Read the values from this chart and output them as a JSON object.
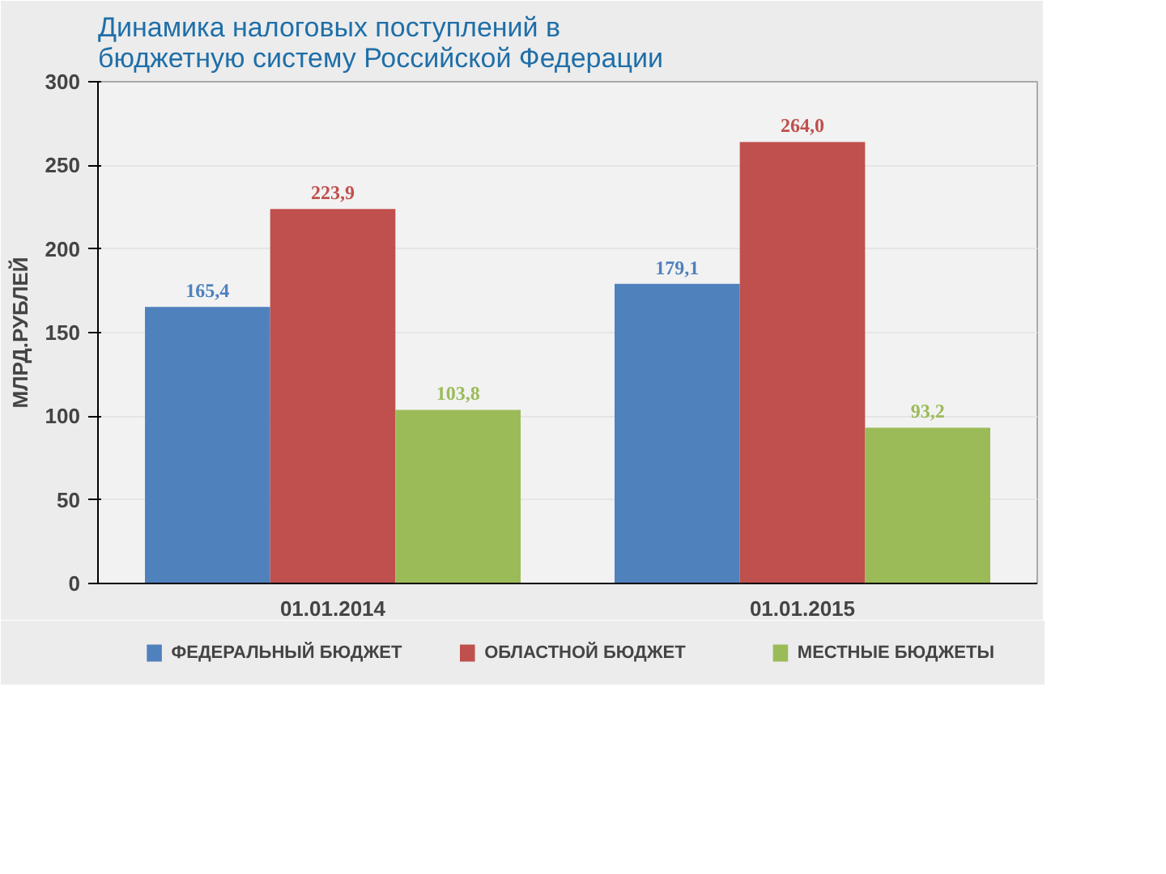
{
  "chart_data": {
    "type": "bar",
    "title": "Динамика налоговых поступлений в\nбюджетную систему Российской Федерации",
    "ylabel": "МЛРД.РУБЛЕЙ",
    "categories": [
      "01.01.2014",
      "01.01.2015"
    ],
    "series": [
      {
        "name": "ФЕДЕРАЛЬНЫЙ БЮДЖЕТ",
        "color": "#4f81bd",
        "values": [
          165.4,
          179.1
        ],
        "value_labels": [
          "165,4",
          "179,1"
        ]
      },
      {
        "name": "ОБЛАСТНОЙ БЮДЖЕТ",
        "color": "#c0504d",
        "values": [
          223.9,
          264.0
        ],
        "value_labels": [
          "223,9",
          "264,0"
        ]
      },
      {
        "name": "МЕСТНЫЕ БЮДЖЕТЫ",
        "color": "#9bbb59",
        "values": [
          103.8,
          93.2
        ],
        "value_labels": [
          "103,8",
          "93,2"
        ]
      }
    ],
    "ylim": [
      0,
      300
    ],
    "yticks": [
      0,
      50,
      100,
      150,
      200,
      250,
      300
    ],
    "grid": "y",
    "legend": "bottom"
  }
}
